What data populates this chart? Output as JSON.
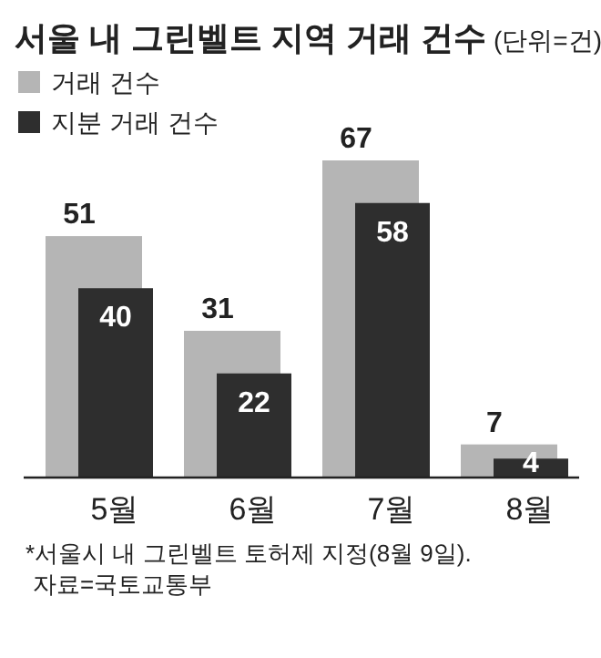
{
  "chart_data": {
    "type": "bar",
    "title": "서울 내 그린벨트 지역 거래 건수",
    "subtitle": "(단위=건)",
    "categories": [
      "5월",
      "6월",
      "7월",
      "8월"
    ],
    "series": [
      {
        "name": "거래 건수",
        "color": "#b5b5b5",
        "values": [
          51,
          31,
          67,
          7
        ]
      },
      {
        "name": "지분 거래 건수",
        "color": "#2e2e2e",
        "values": [
          40,
          22,
          58,
          4
        ]
      }
    ],
    "data_labels": true,
    "legend": "top left",
    "annotations": [
      "*서울시 내 그린벨트 토허제 지정(8월 9일).",
      "자료=국토교통부"
    ]
  }
}
